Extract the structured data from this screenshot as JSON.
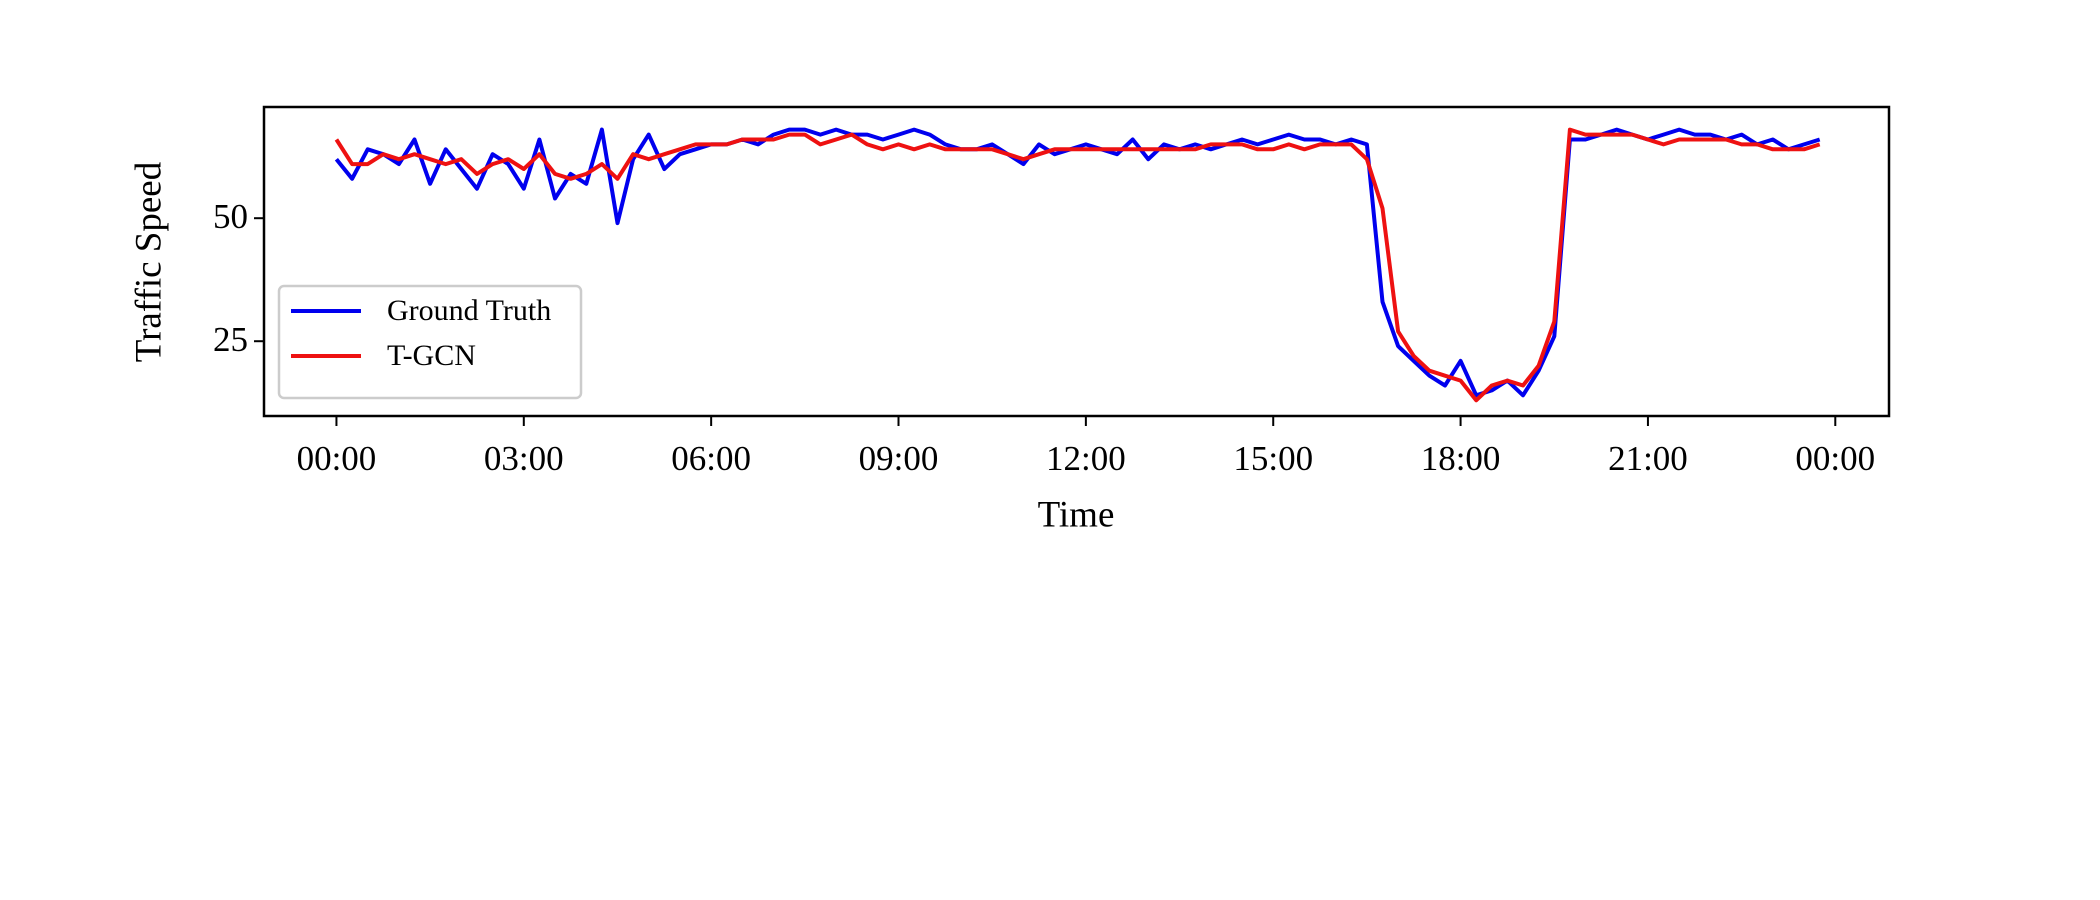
{
  "chart_data": {
    "type": "line",
    "xlabel": "Time",
    "ylabel": "Traffic Speed",
    "x": [
      0,
      0.25,
      0.5,
      0.75,
      1,
      1.25,
      1.5,
      1.75,
      2,
      2.25,
      2.5,
      2.75,
      3,
      3.25,
      3.5,
      3.75,
      4,
      4.25,
      4.5,
      4.75,
      5,
      5.25,
      5.5,
      5.75,
      6,
      6.25,
      6.5,
      6.75,
      7,
      7.25,
      7.5,
      7.75,
      8,
      8.25,
      8.5,
      8.75,
      9,
      9.25,
      9.5,
      9.75,
      10,
      10.25,
      10.5,
      10.75,
      11,
      11.25,
      11.5,
      11.75,
      12,
      12.25,
      12.5,
      12.75,
      13,
      13.25,
      13.5,
      13.75,
      14,
      14.25,
      14.5,
      14.75,
      15,
      15.25,
      15.5,
      15.75,
      16,
      16.25,
      16.5,
      16.75,
      17,
      17.25,
      17.5,
      17.75,
      18,
      18.25,
      18.5,
      18.75,
      19,
      19.25,
      19.5,
      19.75,
      20,
      20.25,
      20.5,
      20.75,
      21,
      21.25,
      21.5,
      21.75,
      22,
      22.25,
      22.5,
      22.75,
      23,
      23.25,
      23.5,
      23.75
    ],
    "series": [
      {
        "name": "Ground Truth",
        "color": "#0000ee",
        "values": [
          62,
          58,
          64,
          63,
          61,
          66,
          57,
          64,
          60,
          56,
          63,
          61,
          56,
          66,
          54,
          59,
          57,
          68,
          49,
          62,
          67,
          60,
          63,
          64,
          65,
          65,
          66,
          65,
          67,
          68,
          68,
          67,
          68,
          67,
          67,
          66,
          67,
          68,
          67,
          65,
          64,
          64,
          65,
          63,
          61,
          65,
          63,
          64,
          65,
          64,
          63,
          66,
          62,
          65,
          64,
          65,
          64,
          65,
          66,
          65,
          66,
          67,
          66,
          66,
          65,
          66,
          65,
          33,
          24,
          21,
          18,
          16,
          21,
          14,
          15,
          17,
          14,
          19,
          26,
          66,
          66,
          67,
          68,
          67,
          66,
          67,
          68,
          67,
          67,
          66,
          67,
          65,
          66,
          64,
          65,
          66
        ]
      },
      {
        "name": "T-GCN",
        "color": "#ee1111",
        "values": [
          66,
          61,
          61,
          63,
          62,
          63,
          62,
          61,
          62,
          59,
          61,
          62,
          60,
          63,
          59,
          58,
          59,
          61,
          58,
          63,
          62,
          63,
          64,
          65,
          65,
          65,
          66,
          66,
          66,
          67,
          67,
          65,
          66,
          67,
          65,
          64,
          65,
          64,
          65,
          64,
          64,
          64,
          64,
          63,
          62,
          63,
          64,
          64,
          64,
          64,
          64,
          64,
          64,
          64,
          64,
          64,
          65,
          65,
          65,
          64,
          64,
          65,
          64,
          65,
          65,
          65,
          62,
          52,
          27,
          22,
          19,
          18,
          17,
          13,
          16,
          17,
          16,
          20,
          29,
          68,
          67,
          67,
          67,
          67,
          66,
          65,
          66,
          66,
          66,
          66,
          65,
          65,
          64,
          64,
          64,
          65
        ]
      }
    ],
    "xlim": [
      -1.16,
      24.86
    ],
    "ylim": [
      9.8,
      72.6
    ],
    "xticks": [
      {
        "value": 0,
        "label": "00:00"
      },
      {
        "value": 3,
        "label": "03:00"
      },
      {
        "value": 6,
        "label": "06:00"
      },
      {
        "value": 9,
        "label": "09:00"
      },
      {
        "value": 12,
        "label": "12:00"
      },
      {
        "value": 15,
        "label": "15:00"
      },
      {
        "value": 18,
        "label": "18:00"
      },
      {
        "value": 21,
        "label": "21:00"
      },
      {
        "value": 24,
        "label": "00:00"
      }
    ],
    "yticks": [
      25,
      50
    ],
    "legend": "lower left"
  }
}
